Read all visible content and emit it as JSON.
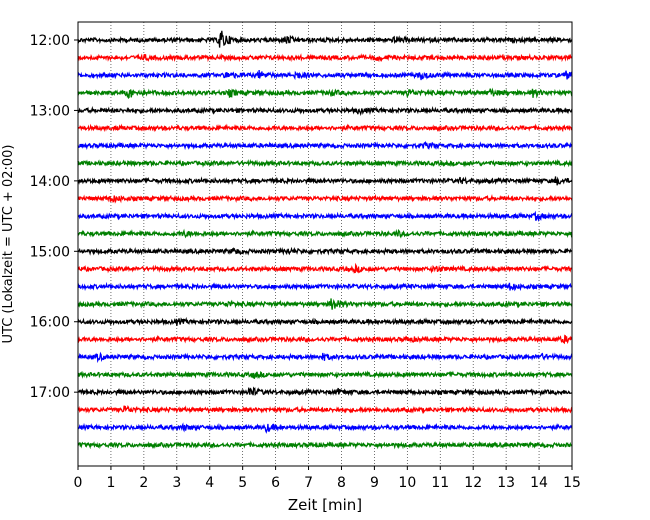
{
  "chart_data": {
    "type": "line",
    "xlabel": "Zeit  [min]",
    "ylabel": "UTC (Lokalzeit = UTC + 02:00)",
    "xlim": [
      0,
      15
    ],
    "x_ticks": [
      "0",
      "1",
      "2",
      "3",
      "4",
      "5",
      "6",
      "7",
      "8",
      "9",
      "10",
      "11",
      "12",
      "13",
      "14",
      "15"
    ],
    "y_ticks": [
      "12:00",
      "13:00",
      "14:00",
      "15:00",
      "16:00",
      "17:00"
    ],
    "row_interval_minutes": 15,
    "start_time": "12:00",
    "grid": "vertical dotted",
    "series": [
      {
        "start": "12:00",
        "color": "#000000",
        "events": [
          [
            4.3,
            7
          ],
          [
            6.3,
            2.5
          ],
          [
            9.6,
            1.5
          ]
        ]
      },
      {
        "start": "12:15",
        "color": "#ff0000",
        "events": [
          [
            2.0,
            1.2
          ],
          [
            9.0,
            1.3
          ]
        ]
      },
      {
        "start": "12:30",
        "color": "#0000ff",
        "events": [
          [
            4.5,
            2
          ],
          [
            5.5,
            2
          ],
          [
            6.6,
            2
          ],
          [
            10.4,
            2.2
          ],
          [
            14.8,
            2
          ]
        ]
      },
      {
        "start": "12:45",
        "color": "#008000",
        "events": [
          [
            1.5,
            3
          ],
          [
            4.6,
            1.8
          ],
          [
            7.6,
            1.5
          ],
          [
            10.0,
            2
          ],
          [
            12.5,
            2
          ],
          [
            13.8,
            2
          ]
        ]
      },
      {
        "start": "13:00",
        "color": "#000000",
        "events": [
          [
            8.5,
            1.3
          ]
        ]
      },
      {
        "start": "13:15",
        "color": "#ff0000",
        "events": []
      },
      {
        "start": "13:30",
        "color": "#0000ff",
        "events": [
          [
            10.5,
            1.2
          ]
        ]
      },
      {
        "start": "13:45",
        "color": "#008000",
        "events": []
      },
      {
        "start": "14:00",
        "color": "#000000",
        "events": [
          [
            14.5,
            2
          ],
          [
            11.6,
            1.2
          ]
        ]
      },
      {
        "start": "14:15",
        "color": "#ff0000",
        "events": [
          [
            1.0,
            2
          ]
        ]
      },
      {
        "start": "14:30",
        "color": "#0000ff",
        "events": [
          [
            13.9,
            1.8
          ]
        ]
      },
      {
        "start": "14:45",
        "color": "#008000",
        "events": [
          [
            3.2,
            1.3
          ],
          [
            9.7,
            1.3
          ]
        ]
      },
      {
        "start": "15:00",
        "color": "#000000",
        "events": [
          [
            4.7,
            1.4
          ],
          [
            6.3,
            1.4
          ]
        ]
      },
      {
        "start": "15:15",
        "color": "#ff0000",
        "events": [
          [
            8.4,
            1.8
          ],
          [
            10.8,
            1.8
          ]
        ]
      },
      {
        "start": "15:30",
        "color": "#0000ff",
        "events": [
          [
            13.1,
            1.8
          ]
        ]
      },
      {
        "start": "15:45",
        "color": "#008000",
        "events": [
          [
            7.7,
            4.5
          ],
          [
            4.5,
            1.4
          ]
        ]
      },
      {
        "start": "16:00",
        "color": "#000000",
        "events": [
          [
            3.0,
            1.2
          ]
        ]
      },
      {
        "start": "16:15",
        "color": "#ff0000",
        "events": [
          [
            14.7,
            2
          ],
          [
            10.0,
            1.4
          ]
        ]
      },
      {
        "start": "16:30",
        "color": "#0000ff",
        "events": [
          [
            0.6,
            1.6
          ],
          [
            7.4,
            1.8
          ],
          [
            14.0,
            1.4
          ]
        ]
      },
      {
        "start": "16:45",
        "color": "#008000",
        "events": [
          [
            5.3,
            1.8
          ]
        ]
      },
      {
        "start": "17:00",
        "color": "#000000",
        "events": [
          [
            5.2,
            3
          ],
          [
            7.9,
            1.3
          ]
        ]
      },
      {
        "start": "17:15",
        "color": "#ff0000",
        "events": [
          [
            1.4,
            2
          ]
        ]
      },
      {
        "start": "17:30",
        "color": "#0000ff",
        "events": [
          [
            5.7,
            2.2
          ],
          [
            3.2,
            1.3
          ]
        ]
      },
      {
        "start": "17:45",
        "color": "#008000",
        "events": []
      }
    ]
  }
}
